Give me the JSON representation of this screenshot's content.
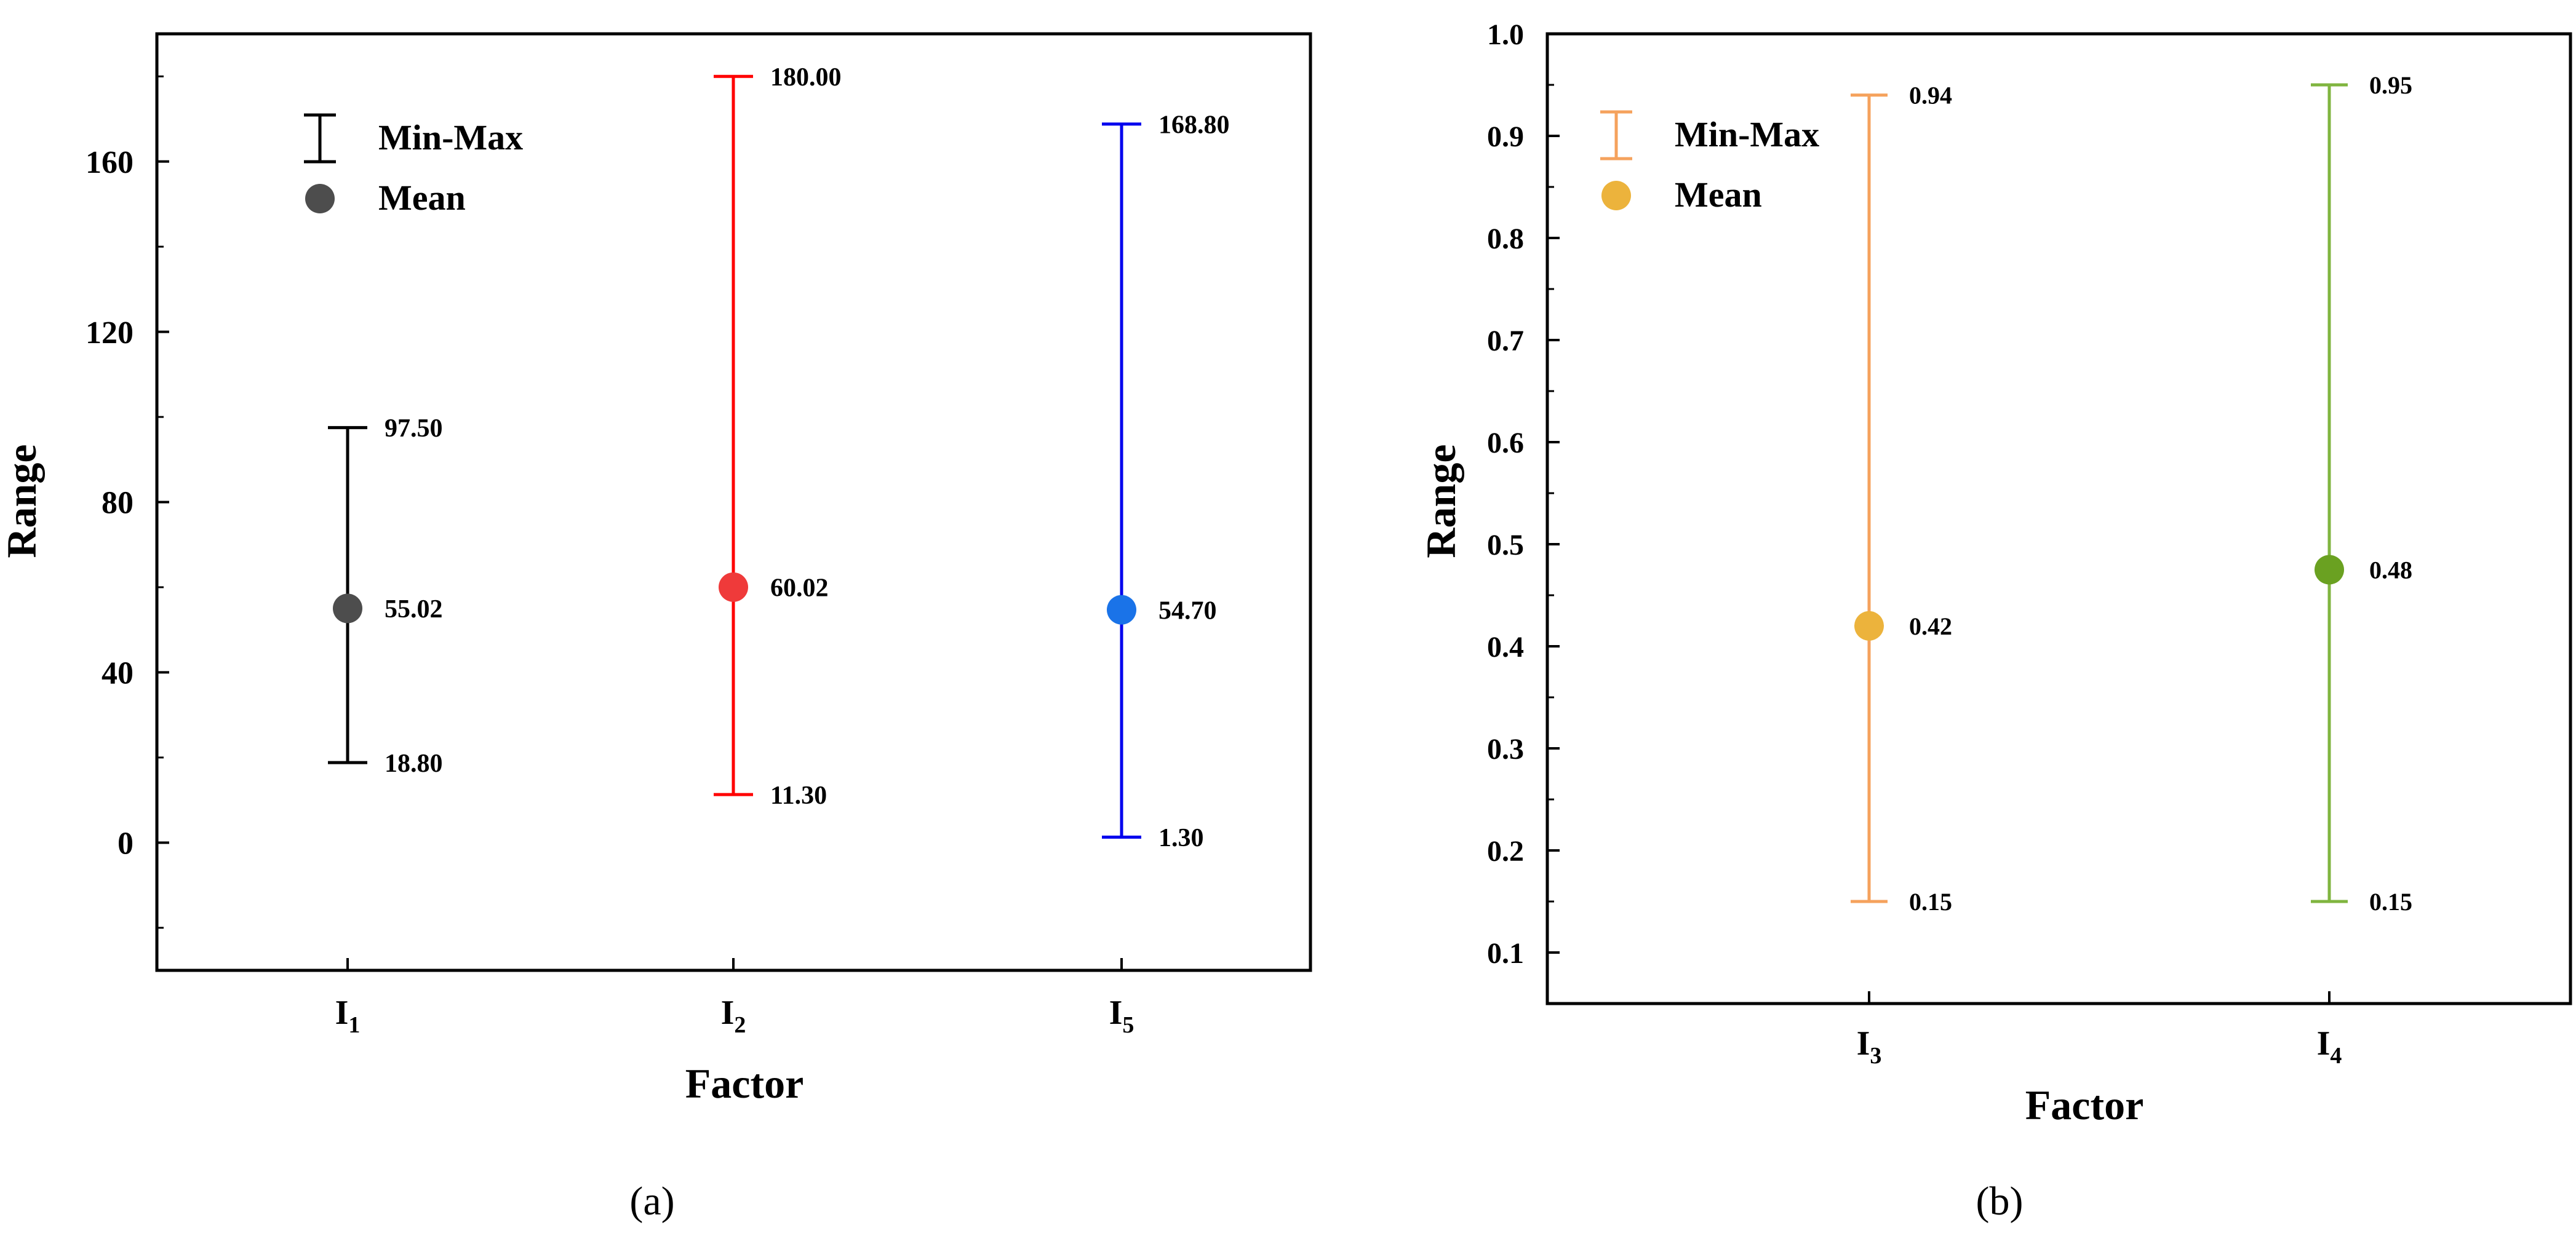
{
  "chart_data": [
    {
      "type": "errorbar",
      "panel_label": "(a)",
      "xlabel": "Factor",
      "ylabel": "Range",
      "ylim": [
        -30,
        190
      ],
      "yticks": [
        0,
        40,
        80,
        120,
        160
      ],
      "ytick_labels": [
        "0",
        "40",
        "80",
        "120",
        "160"
      ],
      "legend": {
        "minmax_label": "Min-Max",
        "mean_label": "Mean",
        "color": "#000000",
        "mean_color": "#4d4d4d",
        "position": "top-left"
      },
      "factors": [
        {
          "base": "I",
          "sub": "1",
          "color": "#000000",
          "mean_color": "#4d4d4d",
          "min": 18.8,
          "max": 97.5,
          "mean": 55.02,
          "min_label": "18.80",
          "max_label": "97.50",
          "mean_label": "55.02"
        },
        {
          "base": "I",
          "sub": "2",
          "color": "#ff0000",
          "mean_color": "#ef3a3a",
          "min": 11.3,
          "max": 180.0,
          "mean": 60.02,
          "min_label": "11.30",
          "max_label": "180.00",
          "mean_label": "60.02"
        },
        {
          "base": "I",
          "sub": "5",
          "color": "#0000ee",
          "mean_color": "#1a73e8",
          "min": 1.3,
          "max": 168.8,
          "mean": 54.7,
          "min_label": "1.30",
          "max_label": "168.80",
          "mean_label": "54.70"
        }
      ]
    },
    {
      "type": "errorbar",
      "panel_label": "(b)",
      "xlabel": "Factor",
      "ylabel": "Range",
      "ylim": [
        0.05,
        1.0
      ],
      "yticks": [
        0.1,
        0.2,
        0.3,
        0.4,
        0.5,
        0.6,
        0.7,
        0.8,
        0.9,
        1.0
      ],
      "ytick_labels": [
        "0.1",
        "0.2",
        "0.3",
        "0.4",
        "0.5",
        "0.6",
        "0.7",
        "0.8",
        "0.9",
        "1.0"
      ],
      "legend": {
        "minmax_label": "Min-Max",
        "mean_label": "Mean",
        "color": "#f5a25d",
        "mean_color": "#ecb33c",
        "position": "top-left"
      },
      "factors": [
        {
          "base": "I",
          "sub": "3",
          "color": "#f5a25d",
          "mean_color": "#ecb33c",
          "min": 0.15,
          "max": 0.94,
          "mean": 0.42,
          "min_label": "0.15",
          "max_label": "0.94",
          "mean_label": "0.42"
        },
        {
          "base": "I",
          "sub": "4",
          "color": "#80b540",
          "mean_color": "#6aa121",
          "min": 0.15,
          "max": 0.95,
          "mean": 0.475,
          "min_label": "0.15",
          "max_label": "0.95",
          "mean_label": "0.48"
        }
      ]
    }
  ]
}
